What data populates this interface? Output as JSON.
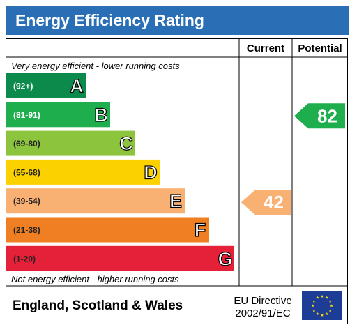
{
  "header": {
    "title": "Energy Efficiency Rating"
  },
  "columns": {
    "current": "Current",
    "potential": "Potential"
  },
  "top_caption": "Very energy efficient - lower running costs",
  "bottom_caption": "Not energy efficient - higher running costs",
  "footer": {
    "region": "England, Scotland & Wales",
    "directive_line1": "EU Directive",
    "directive_line2": "2002/91/EC"
  },
  "chart_data": {
    "type": "bar",
    "bands": [
      {
        "letter": "A",
        "range": "(92+)",
        "color": "#0c8a4c"
      },
      {
        "letter": "B",
        "range": "(81-91)",
        "color": "#1fae4e"
      },
      {
        "letter": "C",
        "range": "(69-80)",
        "color": "#8cc43e"
      },
      {
        "letter": "D",
        "range": "(55-68)",
        "color": "#fcd100"
      },
      {
        "letter": "E",
        "range": "(39-54)",
        "color": "#f9b073"
      },
      {
        "letter": "F",
        "range": "(21-38)",
        "color": "#ef7f22"
      },
      {
        "letter": "G",
        "range": "(1-20)",
        "color": "#e5213a"
      }
    ],
    "current": {
      "value": 42,
      "band": "E",
      "color": "#f9b073"
    },
    "potential": {
      "value": 82,
      "band": "B",
      "color": "#1fae4e"
    }
  }
}
